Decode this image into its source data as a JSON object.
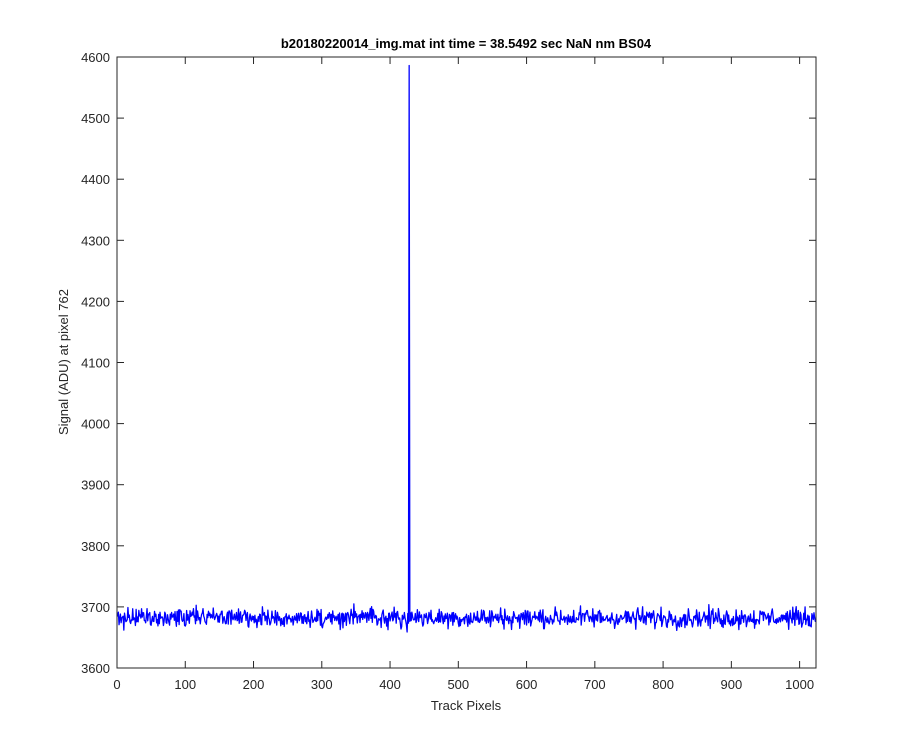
{
  "chart_data": {
    "type": "line",
    "title": "b20180220014_img.mat int time = 38.5492 sec  NaN nm BS04",
    "xlabel": "Track Pixels",
    "ylabel": "Signal (ADU) at pixel 762",
    "xlim": [
      0,
      1024
    ],
    "ylim": [
      3600,
      4600
    ],
    "xticks": [
      0,
      100,
      200,
      300,
      400,
      500,
      600,
      700,
      800,
      900,
      1000
    ],
    "yticks": [
      3600,
      3700,
      3800,
      3900,
      4000,
      4100,
      4200,
      4300,
      4400,
      4500,
      4600
    ],
    "grid": false,
    "legend": "none",
    "series": [
      {
        "color": "#0000ff",
        "baseline": 3682,
        "noise_amplitude": 10,
        "x_range": [
          1,
          1024
        ],
        "spike": {
          "x": 428,
          "y": 4586
        }
      }
    ]
  }
}
